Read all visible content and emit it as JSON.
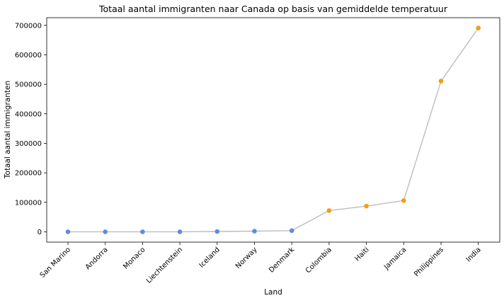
{
  "chart_data": {
    "type": "line",
    "title": "Totaal aantal immigranten naar Canada op basis van gemiddelde temperatuur",
    "xlabel": "Land",
    "ylabel": "Totaal aantal immigranten",
    "categories": [
      "San Marino",
      "Andorra",
      "Monaco",
      "Liechtenstein",
      "Iceland",
      "Norway",
      "Denmark",
      "Colombia",
      "Haiti",
      "Jamaica",
      "Philippines",
      "India"
    ],
    "values": [
      5,
      15,
      29,
      34,
      1000,
      2200,
      3800,
      72000,
      87000,
      106000,
      511000,
      691000
    ],
    "point_colors": [
      "#5b8fd8",
      "#5b8fd8",
      "#5b8fd8",
      "#5b8fd8",
      "#5b8fd8",
      "#5b8fd8",
      "#5b8fd8",
      "#f0a010",
      "#f0a010",
      "#f0a010",
      "#f0a010",
      "#f0a010"
    ],
    "line_color": "#bdbdbd",
    "yticks": [
      0,
      100000,
      200000,
      300000,
      400000,
      500000,
      600000,
      700000
    ],
    "ylim": [
      -35000,
      726000
    ],
    "grid": false,
    "legend": "none"
  }
}
